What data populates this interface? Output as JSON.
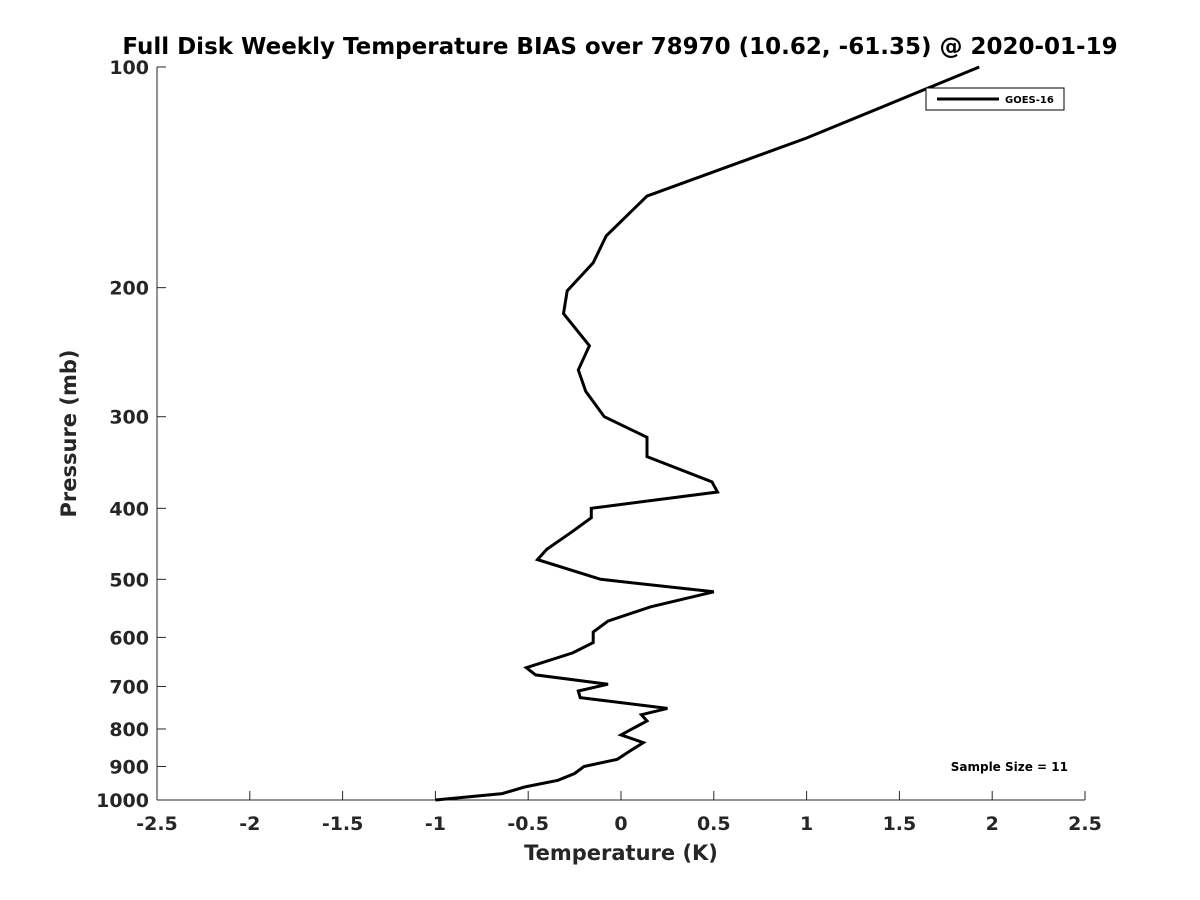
{
  "chart_data": {
    "type": "line",
    "title": "Full Disk Weekly Temperature BIAS over 78970 (10.62, -61.35) @ 2020-01-19",
    "xlabel": "Temperature (K)",
    "ylabel": "Pressure (mb)",
    "xlim": [
      -2.5,
      2.5
    ],
    "ylim": [
      1000,
      100
    ],
    "yscale": "log",
    "grid": false,
    "xticks": [
      -2.5,
      -2,
      -1.5,
      -1,
      -0.5,
      0,
      0.5,
      1,
      1.5,
      2,
      2.5
    ],
    "xtick_labels": [
      "-2.5",
      "-2",
      "-1.5",
      "-1",
      "-0.5",
      "0",
      "0.5",
      "1",
      "1.5",
      "2",
      "2.5"
    ],
    "yticks": [
      100,
      200,
      300,
      400,
      500,
      600,
      700,
      800,
      900,
      1000
    ],
    "ytick_labels": [
      "100",
      "200",
      "300",
      "400",
      "500",
      "600",
      "700",
      "800",
      "900",
      "1000"
    ],
    "legend_position": "top-right",
    "annotation": "Sample Size = 11",
    "series": [
      {
        "name": "GOES-16",
        "color": "#000000",
        "points": [
          {
            "p": 100,
            "t": 1.93
          },
          {
            "p": 125,
            "t": 1.0
          },
          {
            "p": 150,
            "t": 0.14
          },
          {
            "p": 170,
            "t": -0.08
          },
          {
            "p": 185,
            "t": -0.15
          },
          {
            "p": 202,
            "t": -0.29
          },
          {
            "p": 217,
            "t": -0.31
          },
          {
            "p": 240,
            "t": -0.17
          },
          {
            "p": 259,
            "t": -0.23
          },
          {
            "p": 277,
            "t": -0.19
          },
          {
            "p": 300,
            "t": -0.09
          },
          {
            "p": 320,
            "t": 0.14
          },
          {
            "p": 340,
            "t": 0.14
          },
          {
            "p": 368,
            "t": 0.49
          },
          {
            "p": 380,
            "t": 0.52
          },
          {
            "p": 400,
            "t": -0.16
          },
          {
            "p": 412,
            "t": -0.16
          },
          {
            "p": 430,
            "t": -0.26
          },
          {
            "p": 455,
            "t": -0.4
          },
          {
            "p": 470,
            "t": -0.45
          },
          {
            "p": 500,
            "t": -0.11
          },
          {
            "p": 520,
            "t": 0.5
          },
          {
            "p": 545,
            "t": 0.16
          },
          {
            "p": 570,
            "t": -0.07
          },
          {
            "p": 590,
            "t": -0.15
          },
          {
            "p": 610,
            "t": -0.15
          },
          {
            "p": 630,
            "t": -0.26
          },
          {
            "p": 660,
            "t": -0.51
          },
          {
            "p": 675,
            "t": -0.46
          },
          {
            "p": 695,
            "t": -0.07
          },
          {
            "p": 710,
            "t": -0.23
          },
          {
            "p": 725,
            "t": -0.22
          },
          {
            "p": 750,
            "t": 0.25
          },
          {
            "p": 765,
            "t": 0.11
          },
          {
            "p": 780,
            "t": 0.14
          },
          {
            "p": 815,
            "t": 0.0
          },
          {
            "p": 835,
            "t": 0.12
          },
          {
            "p": 860,
            "t": 0.04
          },
          {
            "p": 880,
            "t": -0.02
          },
          {
            "p": 900,
            "t": -0.2
          },
          {
            "p": 920,
            "t": -0.25
          },
          {
            "p": 940,
            "t": -0.34
          },
          {
            "p": 960,
            "t": -0.52
          },
          {
            "p": 980,
            "t": -0.64
          },
          {
            "p": 1000,
            "t": -1.0
          }
        ]
      }
    ]
  }
}
